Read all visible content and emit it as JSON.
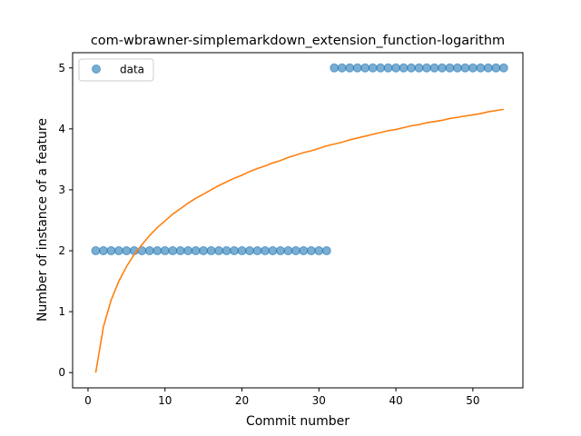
{
  "chart_data": {
    "type": "scatter",
    "title": "com-wbrawner-simplemarkdown_extension_function-logarithm",
    "xlabel": "Commit number",
    "ylabel": "Number of instance of a feature",
    "xlim": [
      -2,
      56.5
    ],
    "ylim": [
      -0.25,
      5.25
    ],
    "xticks": [
      0,
      10,
      20,
      30,
      40,
      50
    ],
    "yticks": [
      0,
      1,
      2,
      3,
      4,
      5
    ],
    "grid": false,
    "legend": {
      "position": "upper-left",
      "entries": [
        "data"
      ]
    },
    "series": [
      {
        "name": "data",
        "kind": "scatter",
        "color": "#1f77b4",
        "x": [
          1,
          2,
          3,
          4,
          5,
          6,
          7,
          8,
          9,
          10,
          11,
          12,
          13,
          14,
          15,
          16,
          17,
          18,
          19,
          20,
          21,
          22,
          23,
          24,
          25,
          26,
          27,
          28,
          29,
          30,
          31,
          32,
          33,
          34,
          35,
          36,
          37,
          38,
          39,
          40,
          41,
          42,
          43,
          44,
          45,
          46,
          47,
          48,
          49,
          50,
          51,
          52,
          53,
          54
        ],
        "y": [
          2,
          2,
          2,
          2,
          2,
          2,
          2,
          2,
          2,
          2,
          2,
          2,
          2,
          2,
          2,
          2,
          2,
          2,
          2,
          2,
          2,
          2,
          2,
          2,
          2,
          2,
          2,
          2,
          2,
          2,
          2,
          5,
          5,
          5,
          5,
          5,
          5,
          5,
          5,
          5,
          5,
          5,
          5,
          5,
          5,
          5,
          5,
          5,
          5,
          5,
          5,
          5,
          5,
          5
        ]
      },
      {
        "kind": "line",
        "color": "#ff7f0e",
        "x": [
          1,
          2,
          3,
          4,
          5,
          6,
          7,
          8,
          9,
          10,
          11,
          12,
          13,
          14,
          15,
          16,
          17,
          18,
          19,
          20,
          21,
          22,
          23,
          24,
          25,
          26,
          27,
          28,
          29,
          30,
          31,
          32,
          33,
          34,
          35,
          36,
          37,
          38,
          39,
          40,
          41,
          42,
          43,
          44,
          45,
          46,
          47,
          48,
          49,
          50,
          51,
          52,
          53,
          54
        ],
        "y": [
          0.0,
          0.75,
          1.19,
          1.5,
          1.74,
          1.94,
          2.1,
          2.25,
          2.38,
          2.49,
          2.6,
          2.69,
          2.78,
          2.86,
          2.93,
          3.0,
          3.07,
          3.13,
          3.19,
          3.24,
          3.3,
          3.35,
          3.39,
          3.44,
          3.48,
          3.53,
          3.57,
          3.61,
          3.64,
          3.68,
          3.72,
          3.75,
          3.78,
          3.82,
          3.85,
          3.88,
          3.91,
          3.94,
          3.97,
          3.99,
          4.02,
          4.05,
          4.07,
          4.1,
          4.12,
          4.14,
          4.17,
          4.19,
          4.21,
          4.23,
          4.25,
          4.28,
          4.3,
          4.32
        ]
      }
    ]
  }
}
